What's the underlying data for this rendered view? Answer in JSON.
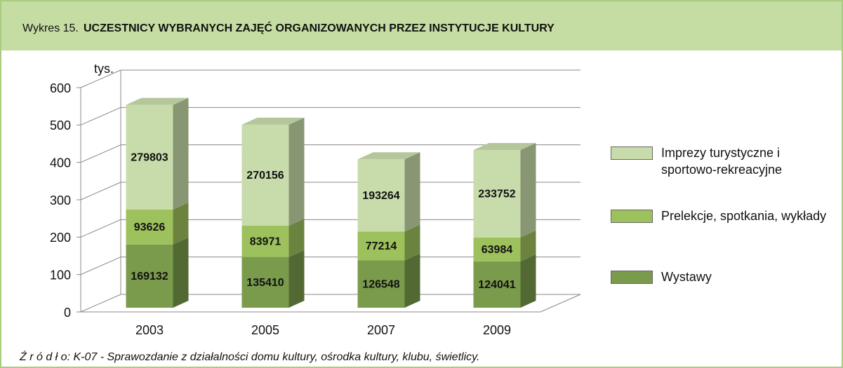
{
  "chart_data": {
    "type": "bar",
    "stacked": true,
    "title_label": "Wykres 15.",
    "title": "UCZESTNICY WYBRANYCH ZAJĘĆ ORGANIZOWANYCH PRZEZ INSTYTUCJE KULTURY",
    "y_axis_label": "tys.",
    "source": "Ź r ó d ł o: K-07 - Sprawozdanie z działalności domu kultury, ośrodka kultury, klubu, świetlicy.",
    "categories": [
      "2003",
      "2005",
      "2007",
      "2009"
    ],
    "series": [
      {
        "name": "Wystawy",
        "color": "#7a9b4c",
        "values": [
          169.132,
          135.41,
          126.548,
          124.041
        ],
        "value_labels": [
          "169132",
          "135410",
          "126548",
          "124041"
        ]
      },
      {
        "name": "Prelekcje, spotkania, wykłady",
        "color": "#9dc15c",
        "values": [
          93.626,
          83.971,
          77.214,
          63.984
        ],
        "value_labels": [
          "93626",
          "83971",
          "77214",
          "63984"
        ]
      },
      {
        "name": "Imprezy turystyczne i sportowo-rekreacyjne",
        "color": "#c8dcab",
        "values": [
          279.803,
          270.156,
          193.264,
          233.752
        ],
        "value_labels": [
          "279803",
          "270156",
          "193264",
          "233752"
        ]
      }
    ],
    "ylim": [
      0,
      600
    ],
    "yticks": [
      0,
      100,
      200,
      300,
      400,
      500,
      600
    ],
    "grid": true,
    "legend": "right"
  }
}
